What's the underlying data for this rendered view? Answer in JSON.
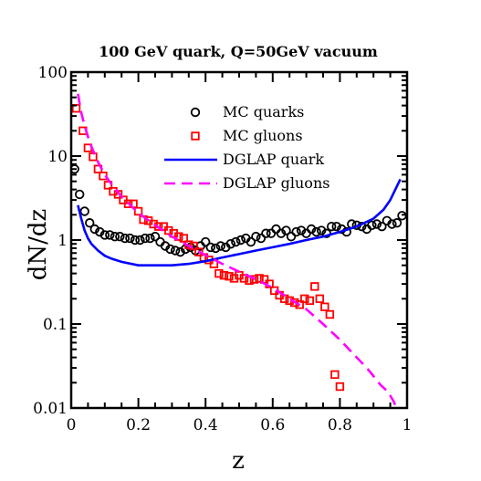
{
  "chart_data": {
    "type": "line",
    "title": "100 GeV quark, Q=50GeV vacuum",
    "xlabel": "z",
    "ylabel": "dN/dz",
    "xlim": [
      0,
      1
    ],
    "ylim": [
      0.01,
      100
    ],
    "yscale": "log",
    "grid": false,
    "legend_position": "top-right",
    "x_ticks": [
      {
        "value": 0,
        "label": "0"
      },
      {
        "value": 0.2,
        "label": "0.2"
      },
      {
        "value": 0.4,
        "label": "0.4"
      },
      {
        "value": 0.6,
        "label": "0.6"
      },
      {
        "value": 0.8,
        "label": "0.8"
      },
      {
        "value": 1,
        "label": "1"
      }
    ],
    "y_ticks": [
      {
        "value": 0.01,
        "label": "0.01"
      },
      {
        "value": 0.1,
        "label": "0.1"
      },
      {
        "value": 1,
        "label": "1"
      },
      {
        "value": 10,
        "label": "10"
      },
      {
        "value": 100,
        "label": "100"
      }
    ],
    "series": [
      {
        "name": "MC quarks",
        "kind": "scatter",
        "marker": "open-circle",
        "color": "#000000",
        "x": [
          0.01,
          0.025,
          0.04,
          0.055,
          0.07,
          0.085,
          0.1,
          0.115,
          0.13,
          0.145,
          0.16,
          0.175,
          0.19,
          0.205,
          0.22,
          0.235,
          0.25,
          0.265,
          0.28,
          0.295,
          0.31,
          0.325,
          0.34,
          0.355,
          0.37,
          0.385,
          0.4,
          0.415,
          0.43,
          0.445,
          0.46,
          0.475,
          0.49,
          0.505,
          0.52,
          0.535,
          0.55,
          0.565,
          0.58,
          0.595,
          0.61,
          0.625,
          0.64,
          0.655,
          0.67,
          0.685,
          0.7,
          0.715,
          0.73,
          0.745,
          0.76,
          0.775,
          0.79,
          0.805,
          0.82,
          0.835,
          0.85,
          0.865,
          0.88,
          0.895,
          0.91,
          0.925,
          0.94,
          0.955,
          0.97,
          0.985
        ],
        "y": [
          7.0,
          3.5,
          2.2,
          1.6,
          1.35,
          1.25,
          1.15,
          1.15,
          1.1,
          1.1,
          1.05,
          1.05,
          1.0,
          1.0,
          1.05,
          1.05,
          1.1,
          0.95,
          0.85,
          0.78,
          0.75,
          0.72,
          0.78,
          0.82,
          0.75,
          0.85,
          0.95,
          0.82,
          0.8,
          0.85,
          0.82,
          0.9,
          0.95,
          1.0,
          1.05,
          0.95,
          1.1,
          1.05,
          1.2,
          1.2,
          1.35,
          1.2,
          1.3,
          1.1,
          1.25,
          1.3,
          1.2,
          1.35,
          1.25,
          1.3,
          1.2,
          1.45,
          1.45,
          1.35,
          1.25,
          1.55,
          1.5,
          1.45,
          1.35,
          1.5,
          1.55,
          1.45,
          1.7,
          1.55,
          1.6,
          1.95
        ]
      },
      {
        "name": "MC gluons",
        "kind": "scatter",
        "marker": "open-square",
        "color": "#ff0000",
        "x": [
          0.015,
          0.035,
          0.05,
          0.065,
          0.08,
          0.095,
          0.11,
          0.125,
          0.14,
          0.155,
          0.17,
          0.185,
          0.2,
          0.215,
          0.23,
          0.245,
          0.26,
          0.275,
          0.29,
          0.305,
          0.32,
          0.335,
          0.35,
          0.365,
          0.38,
          0.395,
          0.41,
          0.425,
          0.44,
          0.455,
          0.47,
          0.485,
          0.5,
          0.515,
          0.53,
          0.545,
          0.56,
          0.575,
          0.59,
          0.605,
          0.62,
          0.635,
          0.65,
          0.665,
          0.68,
          0.695,
          0.71,
          0.725,
          0.74,
          0.755,
          0.77,
          0.785,
          0.8
        ],
        "y": [
          37,
          20,
          12.5,
          9.8,
          7.0,
          5.8,
          4.5,
          3.8,
          3.5,
          3.0,
          2.7,
          2.7,
          2.2,
          1.75,
          1.7,
          1.55,
          1.45,
          1.45,
          1.3,
          1.2,
          1.1,
          1.05,
          0.88,
          0.85,
          0.72,
          0.62,
          0.58,
          0.52,
          0.4,
          0.38,
          0.37,
          0.35,
          0.38,
          0.35,
          0.33,
          0.34,
          0.35,
          0.34,
          0.3,
          0.25,
          0.22,
          0.2,
          0.19,
          0.18,
          0.17,
          0.2,
          0.19,
          0.28,
          0.2,
          0.16,
          0.13,
          0.025,
          0.018
        ]
      },
      {
        "name": "DGLAP quark",
        "kind": "line",
        "style": "solid",
        "color": "#0000ff",
        "x": [
          0.02,
          0.03,
          0.04,
          0.05,
          0.06,
          0.08,
          0.1,
          0.12,
          0.15,
          0.2,
          0.25,
          0.3,
          0.35,
          0.4,
          0.45,
          0.5,
          0.55,
          0.6,
          0.65,
          0.7,
          0.75,
          0.8,
          0.85,
          0.9,
          0.93,
          0.95,
          0.97,
          0.98
        ],
        "y": [
          2.6,
          1.8,
          1.3,
          1.05,
          0.9,
          0.75,
          0.65,
          0.6,
          0.55,
          0.5,
          0.5,
          0.5,
          0.52,
          0.56,
          0.62,
          0.68,
          0.75,
          0.82,
          0.9,
          1.0,
          1.1,
          1.25,
          1.45,
          1.8,
          2.3,
          3.0,
          4.4,
          5.3
        ]
      },
      {
        "name": "DGLAP gluons",
        "kind": "line",
        "style": "dashed",
        "color": "#ff00ff",
        "x": [
          0.02,
          0.03,
          0.04,
          0.05,
          0.06,
          0.08,
          0.1,
          0.12,
          0.15,
          0.2,
          0.25,
          0.3,
          0.35,
          0.4,
          0.45,
          0.5,
          0.55,
          0.6,
          0.65,
          0.7,
          0.75,
          0.8,
          0.85,
          0.88,
          0.9,
          0.92,
          0.94,
          0.95,
          0.96,
          0.97
        ],
        "y": [
          55,
          33,
          23,
          17,
          13,
          8.5,
          6.0,
          4.6,
          3.3,
          2.1,
          1.5,
          1.1,
          0.85,
          0.66,
          0.52,
          0.42,
          0.34,
          0.27,
          0.2,
          0.15,
          0.1,
          0.065,
          0.04,
          0.03,
          0.024,
          0.019,
          0.016,
          0.014,
          0.012,
          0.0095
        ]
      }
    ]
  }
}
